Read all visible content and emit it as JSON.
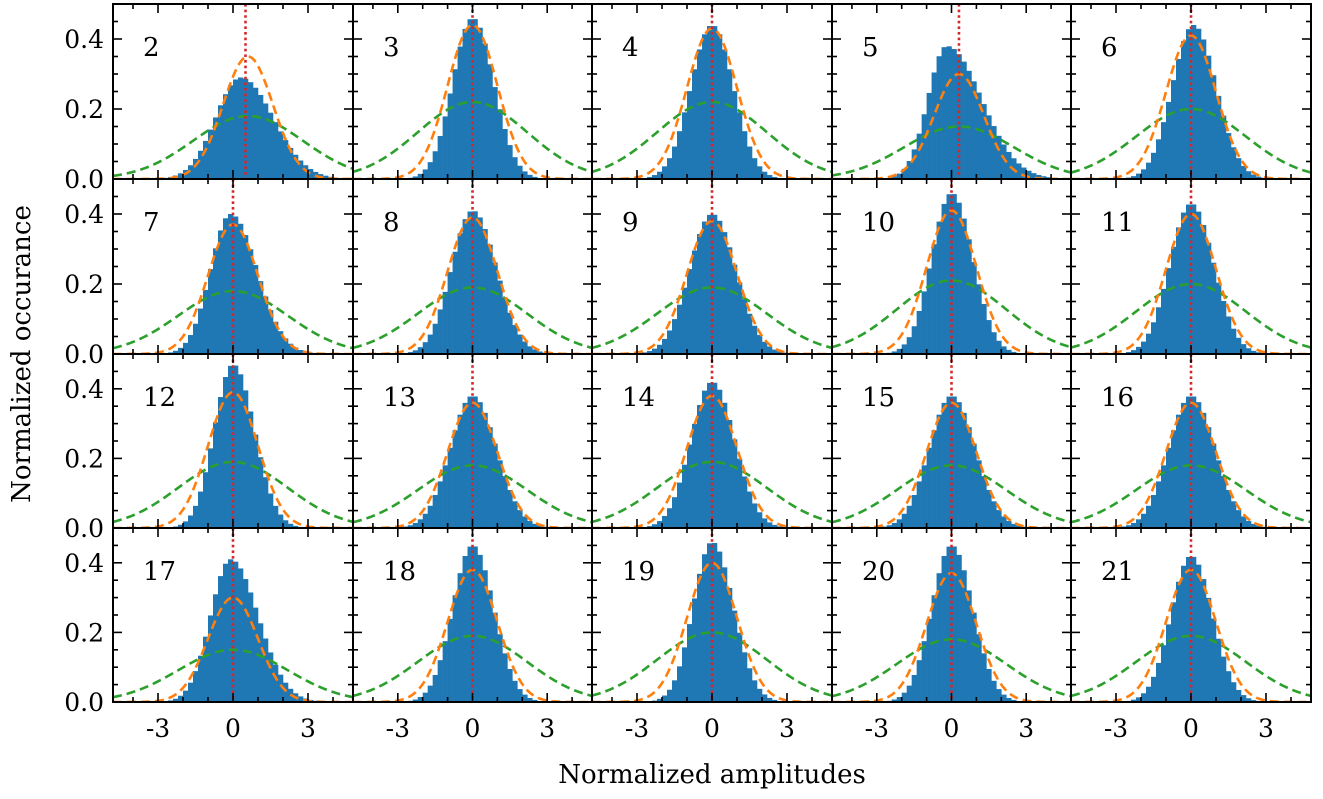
{
  "figure": {
    "xlabel": "Normalized amplitudes",
    "ylabel": "Normalized occurance"
  },
  "chart_data": {
    "type": "bar",
    "layout": "grid of histograms, 4 rows x 5 columns, shared axes",
    "xlim": [
      -4.8,
      4.8
    ],
    "ylim": [
      0,
      0.5
    ],
    "xticks": [
      -3,
      0,
      3
    ],
    "xtick_labels": [
      "-3",
      "0",
      "3"
    ],
    "yticks": [
      0.0,
      0.2,
      0.4
    ],
    "ytick_labels": [
      "0.0",
      "0.2",
      "0.4"
    ],
    "colors": {
      "histogram": "#1f77b4",
      "fit_narrow": "#ff7f0e",
      "fit_wide": "#2ca02c",
      "center_line": "#d62728"
    },
    "bin_width": 0.2,
    "panels": [
      {
        "label": "2",
        "peak": 0.29,
        "mode": 0.3,
        "sigma_left": 1.0,
        "sigma_right": 1.3,
        "fit_narrow": {
          "mean": 0.6,
          "amp": 0.35
        },
        "fit_wide": {
          "mean": 0.6,
          "amp": 0.18
        },
        "center": 0.5
      },
      {
        "label": "3",
        "peak": 0.46,
        "mode": 0.0,
        "sigma_left": 0.8,
        "sigma_right": 0.85,
        "fit_narrow": {
          "mean": 0.0,
          "amp": 0.44
        },
        "fit_wide": {
          "mean": 0.0,
          "amp": 0.22
        },
        "center": 0.0
      },
      {
        "label": "4",
        "peak": 0.44,
        "mode": 0.0,
        "sigma_left": 0.85,
        "sigma_right": 0.85,
        "fit_narrow": {
          "mean": 0.0,
          "amp": 0.43
        },
        "fit_wide": {
          "mean": 0.0,
          "amp": 0.22
        },
        "center": 0.0
      },
      {
        "label": "5",
        "peak": 0.38,
        "mode": -0.2,
        "sigma_left": 0.75,
        "sigma_right": 1.4,
        "fit_narrow": {
          "mean": 0.3,
          "amp": 0.3
        },
        "fit_wide": {
          "mean": 0.3,
          "amp": 0.15
        },
        "center": 0.3
      },
      {
        "label": "6",
        "peak": 0.44,
        "mode": 0.1,
        "sigma_left": 0.85,
        "sigma_right": 0.9,
        "fit_narrow": {
          "mean": 0.0,
          "amp": 0.41
        },
        "fit_wide": {
          "mean": 0.0,
          "amp": 0.2
        },
        "center": 0.0
      },
      {
        "label": "7",
        "peak": 0.4,
        "mode": -0.1,
        "sigma_left": 0.8,
        "sigma_right": 1.05,
        "fit_narrow": {
          "mean": 0.0,
          "amp": 0.37
        },
        "fit_wide": {
          "mean": 0.0,
          "amp": 0.18
        },
        "center": 0.0
      },
      {
        "label": "8",
        "peak": 0.41,
        "mode": 0.0,
        "sigma_left": 0.85,
        "sigma_right": 0.95,
        "fit_narrow": {
          "mean": 0.0,
          "amp": 0.39
        },
        "fit_wide": {
          "mean": 0.0,
          "amp": 0.19
        },
        "center": 0.0
      },
      {
        "label": "9",
        "peak": 0.4,
        "mode": 0.0,
        "sigma_left": 0.9,
        "sigma_right": 0.95,
        "fit_narrow": {
          "mean": 0.0,
          "amp": 0.38
        },
        "fit_wide": {
          "mean": 0.0,
          "amp": 0.19
        },
        "center": 0.0
      },
      {
        "label": "10",
        "peak": 0.46,
        "mode": 0.0,
        "sigma_left": 0.8,
        "sigma_right": 0.85,
        "fit_narrow": {
          "mean": 0.0,
          "amp": 0.41
        },
        "fit_wide": {
          "mean": 0.0,
          "amp": 0.21
        },
        "center": 0.0
      },
      {
        "label": "11",
        "peak": 0.43,
        "mode": 0.0,
        "sigma_left": 0.85,
        "sigma_right": 0.9,
        "fit_narrow": {
          "mean": 0.0,
          "amp": 0.4
        },
        "fit_wide": {
          "mean": 0.0,
          "amp": 0.2
        },
        "center": 0.0
      },
      {
        "label": "12",
        "peak": 0.47,
        "mode": 0.0,
        "sigma_left": 0.75,
        "sigma_right": 0.85,
        "fit_narrow": {
          "mean": 0.0,
          "amp": 0.39
        },
        "fit_wide": {
          "mean": 0.0,
          "amp": 0.19
        },
        "center": 0.0
      },
      {
        "label": "13",
        "peak": 0.38,
        "mode": 0.0,
        "sigma_left": 0.9,
        "sigma_right": 0.95,
        "fit_narrow": {
          "mean": 0.0,
          "amp": 0.36
        },
        "fit_wide": {
          "mean": 0.0,
          "amp": 0.18
        },
        "center": 0.0
      },
      {
        "label": "14",
        "peak": 0.42,
        "mode": 0.0,
        "sigma_left": 0.85,
        "sigma_right": 0.9,
        "fit_narrow": {
          "mean": 0.0,
          "amp": 0.38
        },
        "fit_wide": {
          "mean": 0.0,
          "amp": 0.19
        },
        "center": 0.0
      },
      {
        "label": "15",
        "peak": 0.38,
        "mode": 0.0,
        "sigma_left": 0.9,
        "sigma_right": 0.95,
        "fit_narrow": {
          "mean": 0.0,
          "amp": 0.36
        },
        "fit_wide": {
          "mean": 0.0,
          "amp": 0.18
        },
        "center": 0.0
      },
      {
        "label": "16",
        "peak": 0.38,
        "mode": 0.0,
        "sigma_left": 0.9,
        "sigma_right": 0.95,
        "fit_narrow": {
          "mean": 0.0,
          "amp": 0.36
        },
        "fit_wide": {
          "mean": 0.0,
          "amp": 0.18
        },
        "center": 0.0
      },
      {
        "label": "17",
        "peak": 0.41,
        "mode": -0.1,
        "sigma_left": 0.8,
        "sigma_right": 1.1,
        "fit_narrow": {
          "mean": 0.0,
          "amp": 0.3
        },
        "fit_wide": {
          "mean": 0.0,
          "amp": 0.15
        },
        "center": 0.0
      },
      {
        "label": "18",
        "peak": 0.45,
        "mode": 0.0,
        "sigma_left": 0.8,
        "sigma_right": 0.85,
        "fit_narrow": {
          "mean": 0.0,
          "amp": 0.38
        },
        "fit_wide": {
          "mean": 0.0,
          "amp": 0.19
        },
        "center": 0.0
      },
      {
        "label": "19",
        "peak": 0.46,
        "mode": 0.0,
        "sigma_left": 0.75,
        "sigma_right": 0.85,
        "fit_narrow": {
          "mean": 0.0,
          "amp": 0.4
        },
        "fit_wide": {
          "mean": 0.0,
          "amp": 0.2
        },
        "center": 0.0
      },
      {
        "label": "20",
        "peak": 0.45,
        "mode": 0.0,
        "sigma_left": 0.8,
        "sigma_right": 0.85,
        "fit_narrow": {
          "mean": 0.0,
          "amp": 0.37
        },
        "fit_wide": {
          "mean": 0.0,
          "amp": 0.18
        },
        "center": 0.0
      },
      {
        "label": "21",
        "peak": 0.42,
        "mode": 0.0,
        "sigma_left": 0.8,
        "sigma_right": 0.85,
        "fit_narrow": {
          "mean": 0.0,
          "amp": 0.38
        },
        "fit_wide": {
          "mean": 0.0,
          "amp": 0.19
        },
        "center": 0.0
      }
    ]
  }
}
